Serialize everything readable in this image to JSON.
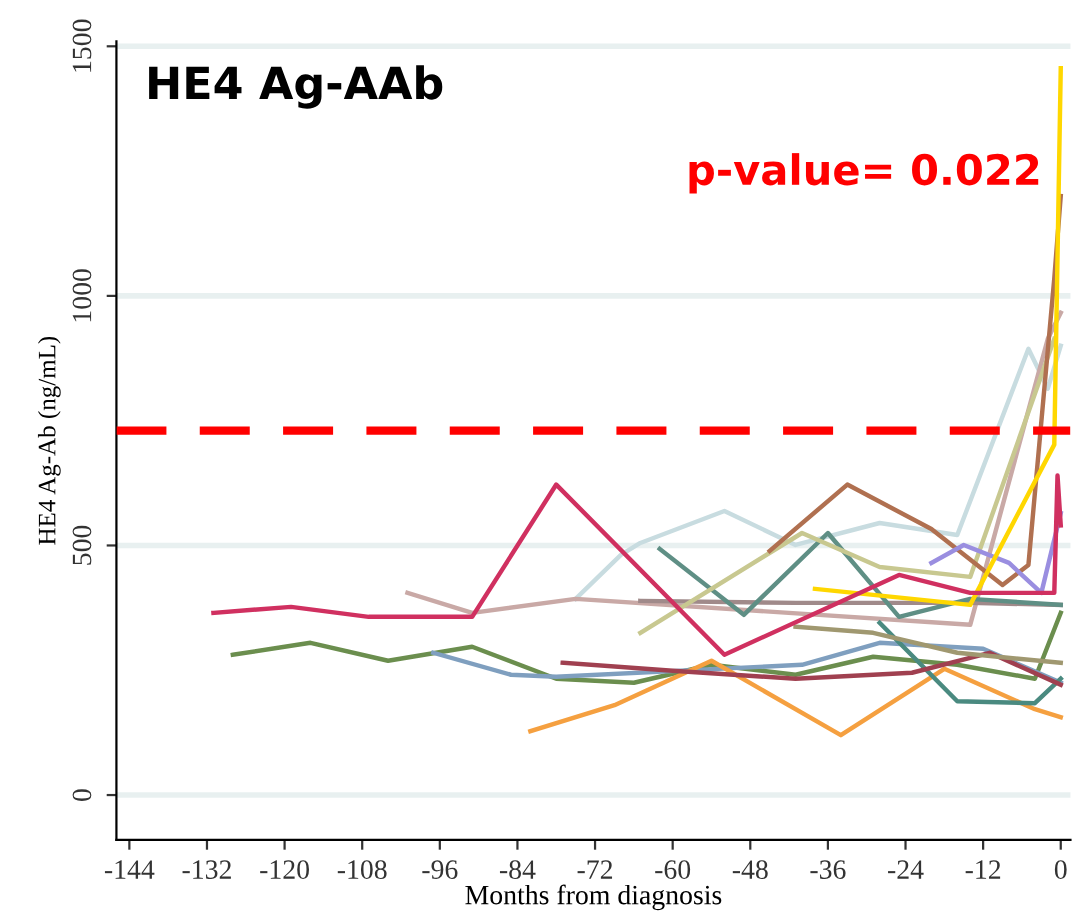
{
  "chart_data": {
    "type": "line",
    "title": "HE4 Ag-AAb",
    "xlabel": "Months from diagnosis",
    "ylabel": "HE4 Ag-Ab (ng/mL)",
    "annotations": [
      "p-value= 0.022"
    ],
    "xlim": [
      -146,
      1.5
    ],
    "xticks": [
      -144,
      -132,
      -120,
      -108,
      -96,
      -84,
      -72,
      -60,
      -48,
      -36,
      -24,
      -12,
      0
    ],
    "ylim": [
      -90,
      1510
    ],
    "yticks": [
      0,
      500,
      1000,
      1500
    ],
    "grid": "y",
    "legend": false,
    "marker": "none",
    "line_style": "solid",
    "ref_lines": [
      {
        "axis": "y",
        "value": 730,
        "color": "#ff0000",
        "line_style": "dashed"
      }
    ],
    "series": [
      {
        "color": "#c8dce0",
        "x": [
          -75,
          -68,
          -65,
          -52,
          -41,
          -28,
          -16,
          -5,
          -2,
          0
        ],
        "values": [
          393,
          481,
          505,
          569,
          501,
          545,
          521,
          894,
          814,
          900
        ]
      },
      {
        "color": "#c9a9a6",
        "x": [
          -101,
          -91,
          -75,
          -14,
          -2,
          0
        ],
        "values": [
          405,
          365,
          393,
          341,
          914,
          966
        ]
      },
      {
        "color": "#a08a8a",
        "x": [
          -65,
          -41,
          -14,
          0
        ],
        "values": [
          389,
          385,
          385,
          381
        ]
      },
      {
        "color": "#6b8e4e",
        "x": [
          -128,
          -116,
          -104,
          -91,
          -78,
          -66,
          -54,
          -41,
          -29,
          -16,
          -4,
          0
        ],
        "values": [
          281,
          305,
          269,
          297,
          233,
          225,
          261,
          241,
          277,
          261,
          233,
          365
        ]
      },
      {
        "color": "#7f9fbf",
        "x": [
          -97,
          -85,
          -78,
          -40,
          -28,
          -12,
          0
        ],
        "values": [
          285,
          241,
          237,
          261,
          305,
          293,
          225
        ]
      },
      {
        "color": "#f5a040",
        "x": [
          -82,
          -69,
          -54,
          -34,
          -18,
          -4,
          0
        ],
        "values": [
          128,
          180,
          269,
          120,
          253,
          172,
          156
        ]
      },
      {
        "color": "#5f8f85",
        "x": [
          -62,
          -49,
          -36,
          -25,
          -14,
          0
        ],
        "values": [
          493,
          361,
          525,
          357,
          393,
          381
        ]
      },
      {
        "color": "#4a8a80",
        "x": [
          -28,
          -16,
          -4,
          0
        ],
        "values": [
          345,
          188,
          184,
          233
        ]
      },
      {
        "color": "#c8c890",
        "x": [
          -65,
          -40,
          -28,
          -14,
          -1
        ],
        "values": [
          325,
          525,
          457,
          437,
          914
        ]
      },
      {
        "color": "#a04050",
        "x": [
          -77,
          -60,
          -41,
          -23,
          -11,
          0
        ],
        "values": [
          265,
          249,
          233,
          245,
          285,
          221
        ]
      },
      {
        "color": "#a09870",
        "x": [
          -41,
          -29,
          -16,
          0
        ],
        "values": [
          337,
          325,
          285,
          265
        ]
      },
      {
        "color": "#b07050",
        "x": [
          -45,
          -33,
          -20,
          -9,
          -5,
          -1,
          0
        ],
        "values": [
          489,
          622,
          533,
          421,
          461,
          1035,
          1200
        ]
      },
      {
        "color": "#9a8ee0",
        "x": [
          -20,
          -15,
          -8,
          -3,
          0
        ],
        "values": [
          465,
          501,
          465,
          405,
          565
        ]
      },
      {
        "color": "#ffd700",
        "x": [
          -38,
          -14,
          -1,
          0
        ],
        "values": [
          413,
          381,
          702,
          1456
        ]
      },
      {
        "color": "#d03060",
        "x": [
          -131,
          -119,
          -107,
          -91,
          -78,
          -52,
          -25,
          -14,
          -1,
          -0.5,
          0
        ],
        "values": [
          365,
          377,
          357,
          357,
          622,
          281,
          441,
          405,
          405,
          640,
          540
        ]
      }
    ]
  }
}
